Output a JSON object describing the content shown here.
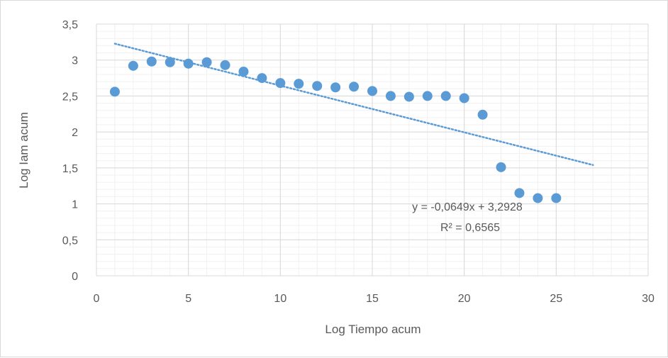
{
  "chart_data": {
    "type": "scatter",
    "xlabel": "Log Tiempo acum",
    "ylabel": "Log Iam acum",
    "xlim": [
      0,
      30
    ],
    "ylim": [
      0,
      3.5
    ],
    "x_ticks": [
      0,
      5,
      10,
      15,
      20,
      25,
      30
    ],
    "x_tick_labels": [
      "0",
      "5",
      "10",
      "15",
      "20",
      "25",
      "30"
    ],
    "y_ticks": [
      0,
      0.5,
      1,
      1.5,
      2,
      2.5,
      3,
      3.5
    ],
    "y_tick_labels": [
      "0",
      "0,5",
      "1",
      "1,5",
      "2",
      "2,5",
      "3",
      "3,5"
    ],
    "grid": true,
    "points": [
      {
        "x": 1,
        "y": 2.56
      },
      {
        "x": 2,
        "y": 2.92
      },
      {
        "x": 3,
        "y": 2.98
      },
      {
        "x": 4,
        "y": 2.97
      },
      {
        "x": 5,
        "y": 2.95
      },
      {
        "x": 6,
        "y": 2.97
      },
      {
        "x": 7,
        "y": 2.93
      },
      {
        "x": 8,
        "y": 2.84
      },
      {
        "x": 9,
        "y": 2.75
      },
      {
        "x": 10,
        "y": 2.68
      },
      {
        "x": 11,
        "y": 2.67
      },
      {
        "x": 12,
        "y": 2.64
      },
      {
        "x": 13,
        "y": 2.62
      },
      {
        "x": 14,
        "y": 2.63
      },
      {
        "x": 15,
        "y": 2.57
      },
      {
        "x": 16,
        "y": 2.5
      },
      {
        "x": 17,
        "y": 2.49
      },
      {
        "x": 18,
        "y": 2.5
      },
      {
        "x": 19,
        "y": 2.5
      },
      {
        "x": 20,
        "y": 2.47
      },
      {
        "x": 21,
        "y": 2.24
      },
      {
        "x": 22,
        "y": 1.51
      },
      {
        "x": 23,
        "y": 1.15
      },
      {
        "x": 24,
        "y": 1.08
      },
      {
        "x": 25,
        "y": 1.08
      }
    ],
    "trendline": {
      "type": "linear",
      "slope": -0.0649,
      "intercept": 3.2928,
      "x_range": [
        1,
        27
      ],
      "style": "dotted"
    },
    "annotations": {
      "equation": "y = -0,0649x + 3,2928",
      "r_squared": "R² = 0,6565"
    },
    "colors": {
      "marker": "#5b9bd5",
      "trendline": "#5b9bd5",
      "major_grid": "#d9d9d9",
      "minor_grid": "#f0f0f0",
      "text": "#595959"
    }
  }
}
